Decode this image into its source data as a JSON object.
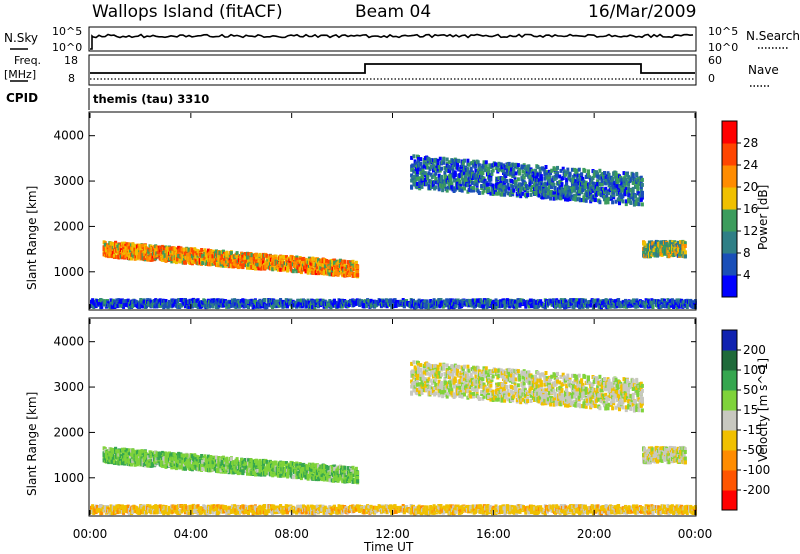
{
  "header": {
    "station": "Wallops Island (fitACF)",
    "beam": "Beam 04",
    "date": "16/Mar/2009"
  },
  "strips": {
    "nsky_label": "N.Sky",
    "nsky_ticks": [
      "10^5",
      "10^0"
    ],
    "nsearch_label": "N.Search",
    "nsearch_ticks": [
      "10^5",
      "10^0"
    ],
    "freq_label": "Freq.",
    "freq_unit": "[MHz]",
    "freq_ticks": [
      "18",
      "8"
    ],
    "nave_label": "Nave",
    "nave_ticks": [
      "60",
      "0"
    ],
    "cpid_label": "CPID",
    "cpid_value": "themis (tau) 3310"
  },
  "colors": {
    "power_scale": [
      "#0000ff",
      "#1a4fb8",
      "#2f7f86",
      "#3c9c5c",
      "#f0c000",
      "#ff8c00",
      "#ff4500",
      "#ff0000"
    ],
    "velocity_scale": [
      "#1022b0",
      "#1f6a3a",
      "#35a64f",
      "#7fd33a",
      "#c8c8c0",
      "#f0c000",
      "#ff8c00",
      "#ff5500",
      "#ff0000"
    ]
  },
  "chart_data": [
    {
      "type": "heatmap",
      "title": "",
      "xlabel": "Time UT",
      "ylabel": "Slant Range [km]",
      "x_ticks": [
        "00:00",
        "04:00",
        "08:00",
        "12:00",
        "16:00",
        "20:00",
        "00:00"
      ],
      "xlim_hours": [
        0,
        24
      ],
      "y_ticks": [
        1000,
        2000,
        3000,
        4000
      ],
      "ylim": [
        180,
        4500
      ],
      "colorbar": {
        "label": "Power [dB]",
        "ticks": [
          "4",
          "8",
          "12",
          "16",
          "20",
          "24",
          "28"
        ],
        "range": [
          0,
          30
        ]
      },
      "features": [
        {
          "name": "main echo band",
          "t_start": 0.5,
          "t_end": 10.6,
          "range_start_km": 1500,
          "range_end_km": 1050,
          "power_db": 20
        },
        {
          "name": "late scatter",
          "t_start": 12.7,
          "t_end": 21.9,
          "range_start_km": 3200,
          "range_end_km": 2800,
          "power_db": 8
        },
        {
          "name": "evening echo",
          "t_start": 21.9,
          "t_end": 23.6,
          "range_start_km": 1500,
          "range_end_km": 1500,
          "power_db": 14
        },
        {
          "name": "ground scatter floor",
          "t_start": 0,
          "t_end": 24,
          "range_start_km": 300,
          "range_end_km": 300,
          "power_db": 6
        }
      ]
    },
    {
      "type": "heatmap",
      "title": "",
      "xlabel": "Time UT",
      "ylabel": "Slant Range [km]",
      "x_ticks": [
        "00:00",
        "04:00",
        "08:00",
        "12:00",
        "16:00",
        "20:00",
        "00:00"
      ],
      "xlim_hours": [
        0,
        24
      ],
      "y_ticks": [
        1000,
        2000,
        3000,
        4000
      ],
      "ylim": [
        180,
        4500
      ],
      "colorbar": {
        "label": "Velocity [m s^-1]",
        "ticks": [
          "200",
          "100",
          "50",
          "15",
          "-15",
          "-50",
          "-100",
          "-200"
        ],
        "range": [
          -250,
          250
        ]
      },
      "features": [
        {
          "name": "main echo band",
          "t_start": 0.5,
          "t_end": 10.6,
          "range_start_km": 1500,
          "range_end_km": 1050,
          "velocity_ms": 40
        },
        {
          "name": "late scatter",
          "t_start": 12.7,
          "t_end": 21.9,
          "range_start_km": 3200,
          "range_end_km": 2800,
          "velocity_ms": 0
        },
        {
          "name": "evening echo",
          "t_start": 21.9,
          "t_end": 23.6,
          "range_start_km": 1500,
          "range_end_km": 1500,
          "velocity_ms": 0
        },
        {
          "name": "ground scatter floor",
          "t_start": 0,
          "t_end": 24,
          "range_start_km": 300,
          "range_end_km": 300,
          "velocity_ms": -30
        }
      ]
    }
  ]
}
